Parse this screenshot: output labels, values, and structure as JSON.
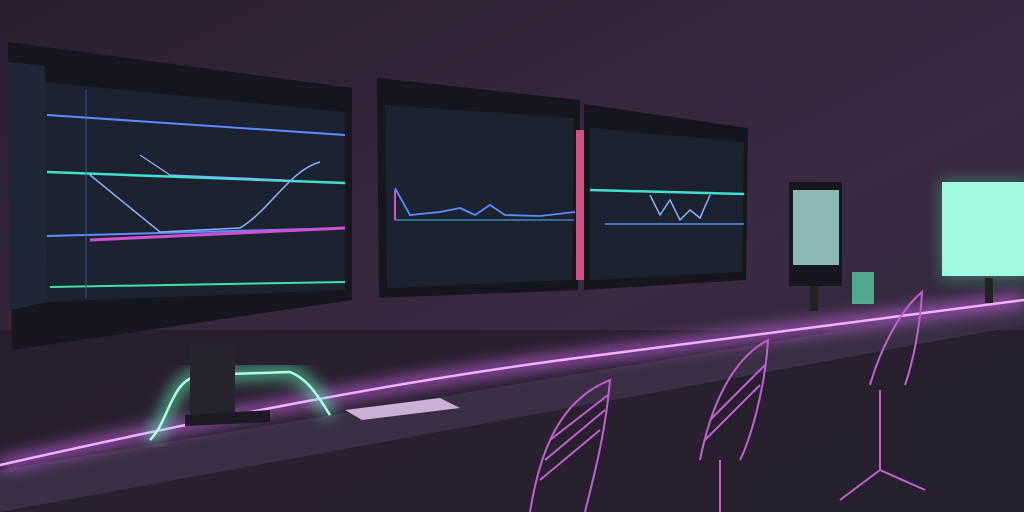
{
  "scene": {
    "description_colors": {
      "wall": "#2c2233",
      "screen": "#1d2230",
      "neon_pink": "#e070ff",
      "neon_green": "#60ffc0",
      "chart_blue": "#5a8cff",
      "chart_cyan": "#40e0d0",
      "chart_pink": "#d050d0"
    },
    "icons": [
      "monitor",
      "chair",
      "keyboard",
      "desk",
      "neon-light-strip"
    ]
  }
}
